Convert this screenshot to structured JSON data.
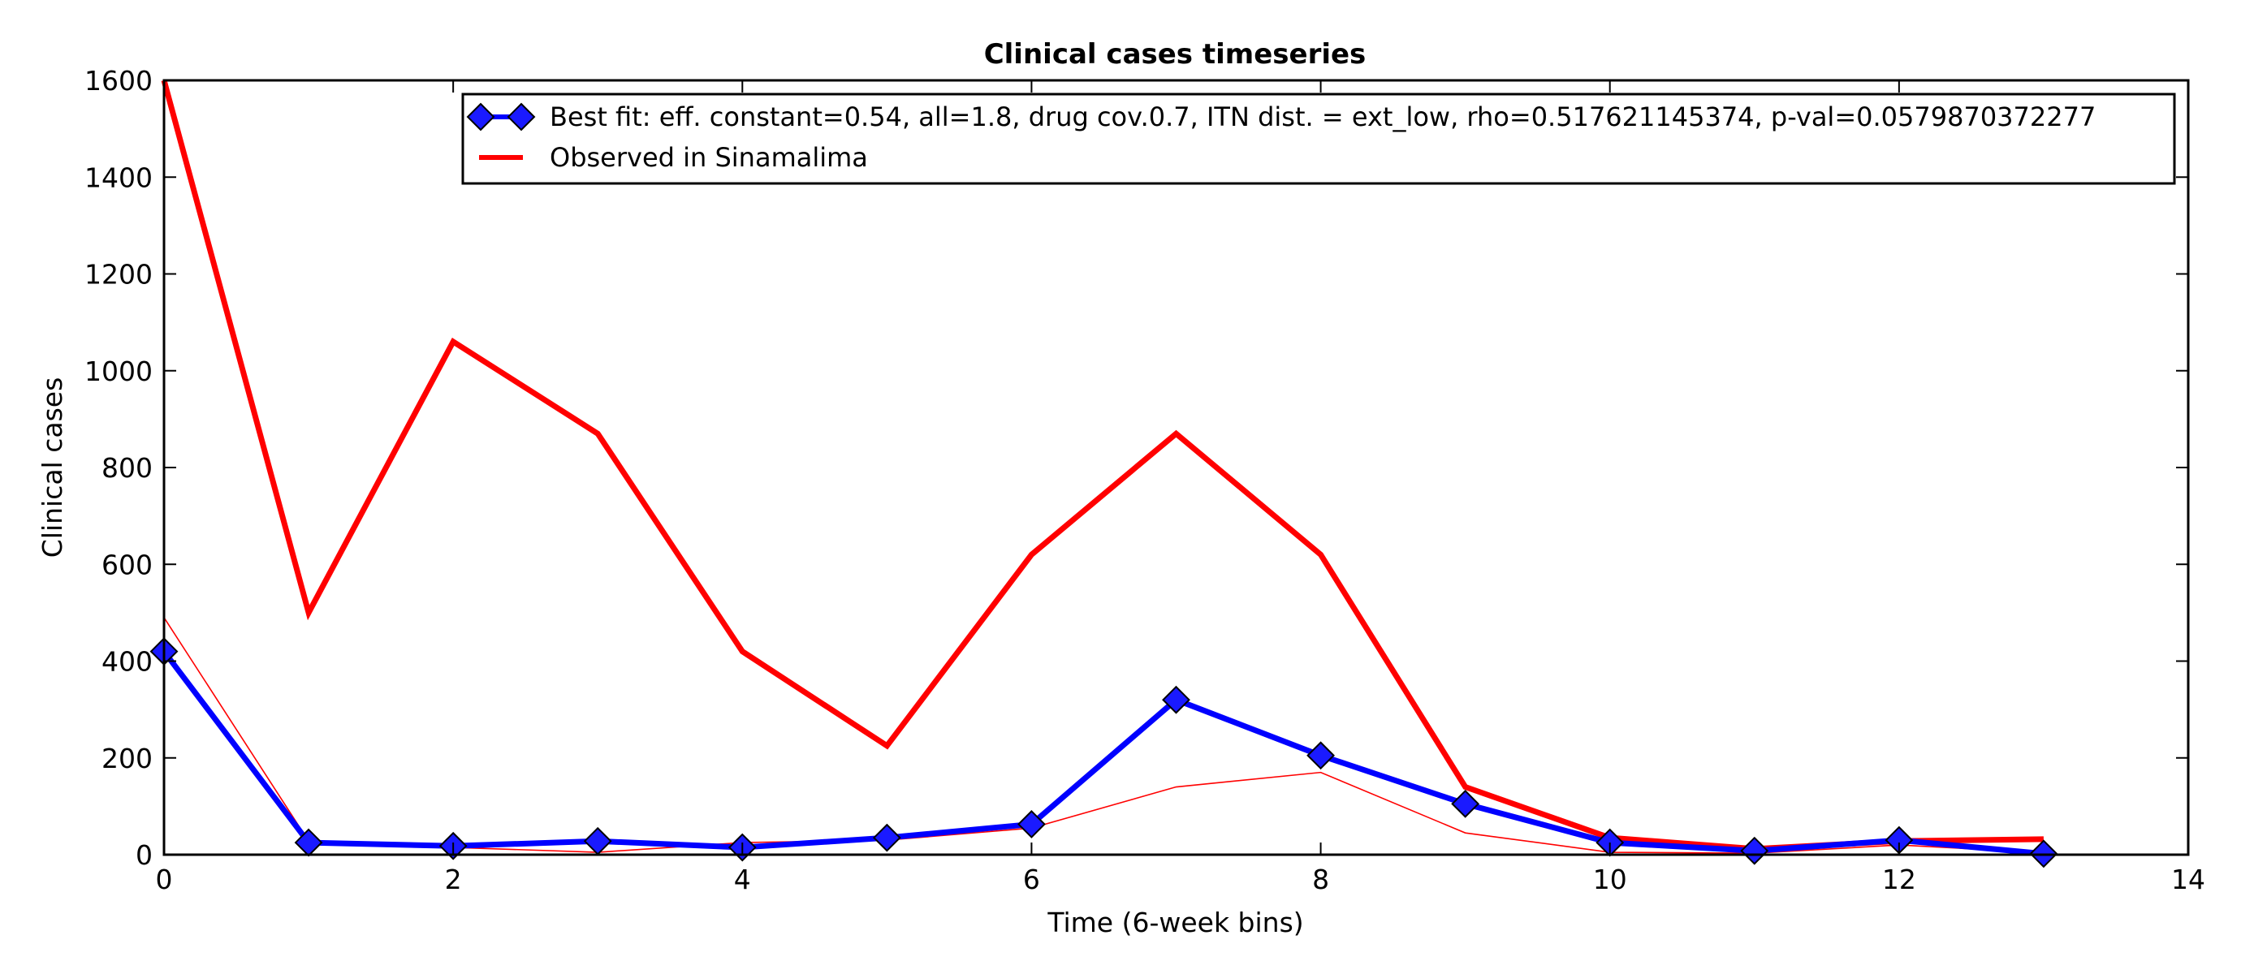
{
  "chart_data": {
    "type": "line",
    "title": "Clinical cases timeseries",
    "xlabel": "Time (6-week bins)",
    "ylabel": "Clinical cases",
    "xlim": [
      0,
      14
    ],
    "ylim": [
      0,
      1600
    ],
    "xticks": [
      0,
      2,
      4,
      6,
      8,
      10,
      12,
      14
    ],
    "yticks": [
      0,
      200,
      400,
      600,
      800,
      1000,
      1200,
      1400,
      1600
    ],
    "grid": false,
    "legend_position": "top-right",
    "x": [
      0,
      1,
      2,
      3,
      4,
      5,
      6,
      7,
      8,
      9,
      10,
      11,
      12,
      13
    ],
    "series": [
      {
        "name": "Best fit: eff. constant=0.54, all=1.8, drug cov.0.7, ITN dist. = ext_low, rho=0.517621145374, p-val=0.0579870372277",
        "color": "#0000ff",
        "marker": "diamond",
        "marker_color": "#1a1aff",
        "values": [
          420,
          25,
          18,
          28,
          15,
          35,
          63,
          320,
          205,
          105,
          25,
          8,
          30,
          2
        ]
      },
      {
        "name": "Observed in Sinamalima",
        "color": "#ff0000",
        "values": [
          1600,
          500,
          1060,
          870,
          420,
          225,
          620,
          870,
          620,
          140,
          35,
          12,
          28,
          32
        ]
      },
      {
        "color": "#ff0000",
        "style": "thin",
        "values": [
          490,
          28,
          15,
          5,
          25,
          30,
          55,
          140,
          170,
          45,
          5,
          3,
          20,
          4
        ]
      }
    ]
  }
}
